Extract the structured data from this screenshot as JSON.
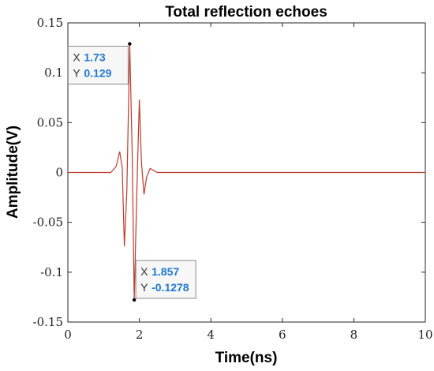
{
  "chart_data": {
    "type": "line",
    "title": "Total reflection echoes",
    "xlabel": "Time(ns)",
    "ylabel": "Amplitude(V)",
    "xlim": [
      0,
      10
    ],
    "ylim": [
      -0.15,
      0.15
    ],
    "xticks": [
      "0",
      "2",
      "4",
      "6",
      "8",
      "10"
    ],
    "yticks": [
      "0.15",
      "0.1",
      "0.05",
      "0",
      "-0.05",
      "-0.1",
      "-0.15"
    ],
    "grid": false,
    "series": [
      {
        "color": "#c0392b",
        "x": [
          0,
          1.2,
          1.35,
          1.45,
          1.52,
          1.58,
          1.65,
          1.73,
          1.8,
          1.857,
          1.93,
          2.0,
          2.06,
          2.13,
          2.2,
          2.3,
          2.5,
          10
        ],
        "y": [
          0,
          0,
          0.006,
          0.021,
          0.005,
          -0.074,
          -0.02,
          0.129,
          0.02,
          -0.1278,
          -0.02,
          0.073,
          0.01,
          -0.022,
          -0.005,
          0.004,
          0,
          0
        ]
      }
    ],
    "datatips": [
      {
        "x_key": "X",
        "x_value": "1.73",
        "y_key": "Y",
        "y_value": "0.129",
        "x": 1.73,
        "y": 0.129
      },
      {
        "x_key": "X",
        "x_value": "1.857",
        "y_key": "Y",
        "y_value": "-0.1278",
        "x": 1.857,
        "y": -0.1278
      }
    ]
  }
}
